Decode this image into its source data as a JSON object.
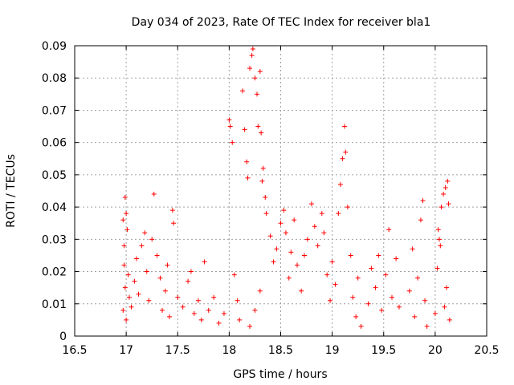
{
  "chart_data": {
    "type": "scatter",
    "title": "Day 034 of 2023, Rate Of TEC Index for receiver bla1",
    "xlabel": "GPS time / hours",
    "ylabel": "ROTI / TECUs",
    "xlim": [
      16.5,
      20.5
    ],
    "ylim": [
      0,
      0.09
    ],
    "xticks": [
      "16.5",
      "17",
      "17.5",
      "18",
      "18.5",
      "19",
      "19.5",
      "20",
      "20.5"
    ],
    "yticks": [
      "0",
      "0.01",
      "0.02",
      "0.03",
      "0.04",
      "0.05",
      "0.06",
      "0.07",
      "0.08",
      "0.09"
    ],
    "grid": true,
    "marker": "+",
    "series": [
      {
        "color": "#ff0000",
        "points": [
          [
            16.97,
            0.036
          ],
          [
            16.98,
            0.028
          ],
          [
            16.99,
            0.043
          ],
          [
            17.0,
            0.038
          ],
          [
            17.01,
            0.033
          ],
          [
            16.98,
            0.022
          ],
          [
            16.99,
            0.015
          ],
          [
            17.02,
            0.019
          ],
          [
            16.97,
            0.008
          ],
          [
            17.0,
            0.005
          ],
          [
            17.03,
            0.012
          ],
          [
            17.05,
            0.009
          ],
          [
            17.08,
            0.017
          ],
          [
            17.1,
            0.024
          ],
          [
            17.12,
            0.013
          ],
          [
            17.15,
            0.028
          ],
          [
            17.18,
            0.032
          ],
          [
            17.2,
            0.02
          ],
          [
            17.22,
            0.011
          ],
          [
            17.25,
            0.03
          ],
          [
            17.27,
            0.044
          ],
          [
            17.3,
            0.025
          ],
          [
            17.33,
            0.018
          ],
          [
            17.35,
            0.008
          ],
          [
            17.38,
            0.014
          ],
          [
            17.4,
            0.022
          ],
          [
            17.42,
            0.006
          ],
          [
            17.45,
            0.039
          ],
          [
            17.46,
            0.035
          ],
          [
            17.5,
            0.012
          ],
          [
            17.55,
            0.009
          ],
          [
            17.6,
            0.017
          ],
          [
            17.63,
            0.02
          ],
          [
            17.66,
            0.007
          ],
          [
            17.7,
            0.011
          ],
          [
            17.73,
            0.005
          ],
          [
            17.76,
            0.023
          ],
          [
            17.8,
            0.008
          ],
          [
            17.85,
            0.012
          ],
          [
            17.9,
            0.004
          ],
          [
            17.95,
            0.007
          ],
          [
            18.0,
            0.067
          ],
          [
            18.01,
            0.065
          ],
          [
            18.03,
            0.06
          ],
          [
            18.05,
            0.019
          ],
          [
            18.08,
            0.011
          ],
          [
            18.1,
            0.005
          ],
          [
            18.13,
            0.076
          ],
          [
            18.15,
            0.064
          ],
          [
            18.17,
            0.054
          ],
          [
            18.18,
            0.049
          ],
          [
            18.2,
            0.083
          ],
          [
            18.22,
            0.087
          ],
          [
            18.23,
            0.089
          ],
          [
            18.25,
            0.08
          ],
          [
            18.27,
            0.075
          ],
          [
            18.28,
            0.065
          ],
          [
            18.3,
            0.082
          ],
          [
            18.31,
            0.063
          ],
          [
            18.32,
            0.048
          ],
          [
            18.33,
            0.052
          ],
          [
            18.35,
            0.043
          ],
          [
            18.36,
            0.038
          ],
          [
            18.3,
            0.014
          ],
          [
            18.25,
            0.008
          ],
          [
            18.2,
            0.003
          ],
          [
            18.4,
            0.031
          ],
          [
            18.43,
            0.023
          ],
          [
            18.46,
            0.027
          ],
          [
            18.5,
            0.035
          ],
          [
            18.53,
            0.039
          ],
          [
            18.55,
            0.032
          ],
          [
            18.58,
            0.018
          ],
          [
            18.6,
            0.026
          ],
          [
            18.63,
            0.036
          ],
          [
            18.66,
            0.022
          ],
          [
            18.7,
            0.014
          ],
          [
            18.73,
            0.025
          ],
          [
            18.76,
            0.03
          ],
          [
            18.8,
            0.041
          ],
          [
            18.83,
            0.034
          ],
          [
            18.86,
            0.028
          ],
          [
            18.9,
            0.038
          ],
          [
            18.92,
            0.032
          ],
          [
            18.95,
            0.019
          ],
          [
            18.98,
            0.011
          ],
          [
            19.0,
            0.023
          ],
          [
            19.03,
            0.016
          ],
          [
            19.06,
            0.038
          ],
          [
            19.08,
            0.047
          ],
          [
            19.1,
            0.055
          ],
          [
            19.12,
            0.065
          ],
          [
            19.13,
            0.057
          ],
          [
            19.15,
            0.04
          ],
          [
            19.18,
            0.025
          ],
          [
            19.2,
            0.012
          ],
          [
            19.23,
            0.006
          ],
          [
            19.25,
            0.018
          ],
          [
            19.28,
            0.003
          ],
          [
            19.35,
            0.01
          ],
          [
            19.38,
            0.021
          ],
          [
            19.42,
            0.015
          ],
          [
            19.45,
            0.025
          ],
          [
            19.48,
            0.008
          ],
          [
            19.52,
            0.019
          ],
          [
            19.55,
            0.033
          ],
          [
            19.58,
            0.012
          ],
          [
            19.62,
            0.024
          ],
          [
            19.65,
            0.009
          ],
          [
            19.75,
            0.014
          ],
          [
            19.78,
            0.027
          ],
          [
            19.8,
            0.006
          ],
          [
            19.83,
            0.018
          ],
          [
            19.86,
            0.036
          ],
          [
            19.88,
            0.042
          ],
          [
            19.9,
            0.011
          ],
          [
            19.92,
            0.003
          ],
          [
            20.0,
            0.007
          ],
          [
            20.02,
            0.021
          ],
          [
            20.04,
            0.03
          ],
          [
            20.06,
            0.04
          ],
          [
            20.08,
            0.044
          ],
          [
            20.1,
            0.046
          ],
          [
            20.12,
            0.048
          ],
          [
            20.13,
            0.041
          ],
          [
            20.11,
            0.015
          ],
          [
            20.14,
            0.005
          ],
          [
            20.09,
            0.009
          ],
          [
            20.05,
            0.028
          ],
          [
            20.03,
            0.033
          ]
        ]
      }
    ]
  }
}
